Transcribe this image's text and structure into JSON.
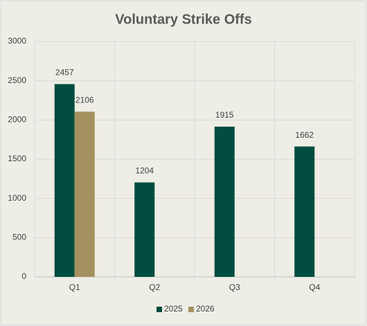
{
  "chart_data": {
    "type": "bar",
    "title": "Voluntary Strike Offs",
    "categories": [
      "Q1",
      "Q2",
      "Q3",
      "Q4"
    ],
    "series": [
      {
        "name": "2025",
        "color": "#004d3f",
        "values": [
          2457,
          1204,
          1915,
          1662
        ]
      },
      {
        "name": "2026",
        "color": "#a5915f",
        "values": [
          2106,
          null,
          null,
          null
        ]
      }
    ],
    "ylim": [
      0,
      3000
    ],
    "yticks": [
      0,
      500,
      1000,
      1500,
      2000,
      2500,
      3000
    ],
    "grid": true,
    "legend": "bottom"
  }
}
